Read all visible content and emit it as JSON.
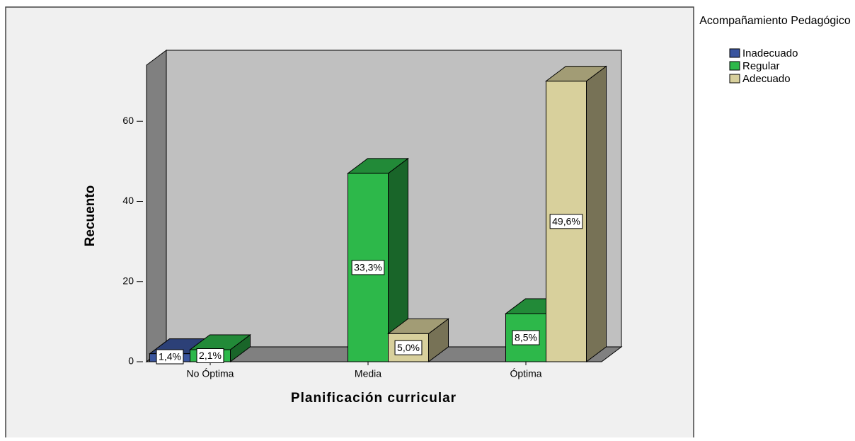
{
  "chart_data": {
    "type": "bar3d",
    "x_label": "Planificación curricular",
    "y_label": "Recuento",
    "legend_title": "Acompañamiento Pedagógico",
    "categories": [
      "No Óptima",
      "Media",
      "Óptima"
    ],
    "series": [
      {
        "name": "Inadecuado",
        "color": "#3a559e",
        "values": [
          2,
          null,
          null
        ],
        "percentages": [
          1.4,
          null,
          null
        ],
        "percentage_labels": [
          "1,4%",
          null,
          null
        ]
      },
      {
        "name": "Regular",
        "color": "#2db84a",
        "values": [
          3,
          47,
          12
        ],
        "percentages": [
          2.1,
          33.3,
          8.5
        ],
        "percentage_labels": [
          "2,1%",
          "33,3%",
          "8,5%"
        ]
      },
      {
        "name": "Adecuado",
        "color": "#d8d09c",
        "values": [
          null,
          7,
          70
        ],
        "percentages": [
          null,
          5.0,
          49.6
        ],
        "percentage_labels": [
          null,
          "5,0%",
          "49,6%"
        ]
      }
    ],
    "ylim": [
      0,
      74
    ],
    "yticks": [
      0,
      20,
      40,
      60
    ],
    "legend": "right"
  }
}
